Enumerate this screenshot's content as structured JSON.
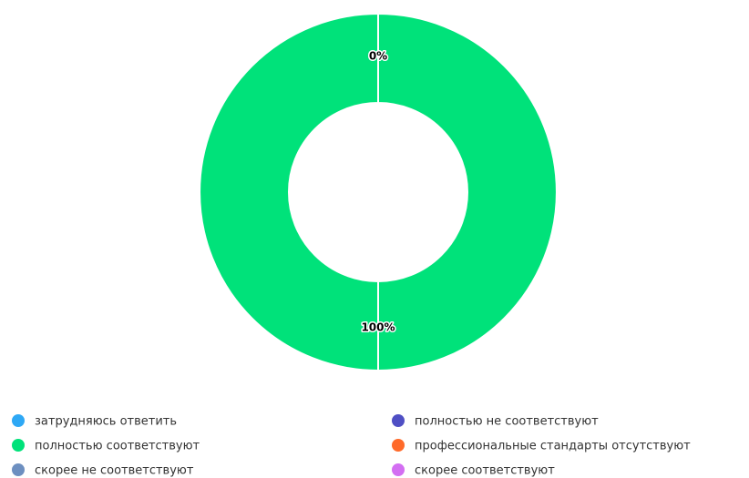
{
  "chart_data": {
    "type": "donut",
    "categories": [
      "затрудняюсь ответить",
      "полностью не соответствуют",
      "полностью соответствуют",
      "профессиональные стандарты отсутствуют",
      "скорее не соответствуют",
      "скорее соответствуют"
    ],
    "values": [
      0,
      0,
      100,
      0,
      0,
      0
    ],
    "value_labels": [
      "0%",
      null,
      "100%",
      null,
      null,
      null
    ],
    "colors": [
      "#2ea8f5",
      "#4f4fc4",
      "#00e27a",
      "#ff6a2a",
      "#6d8fc0",
      "#d36ef2"
    ]
  }
}
